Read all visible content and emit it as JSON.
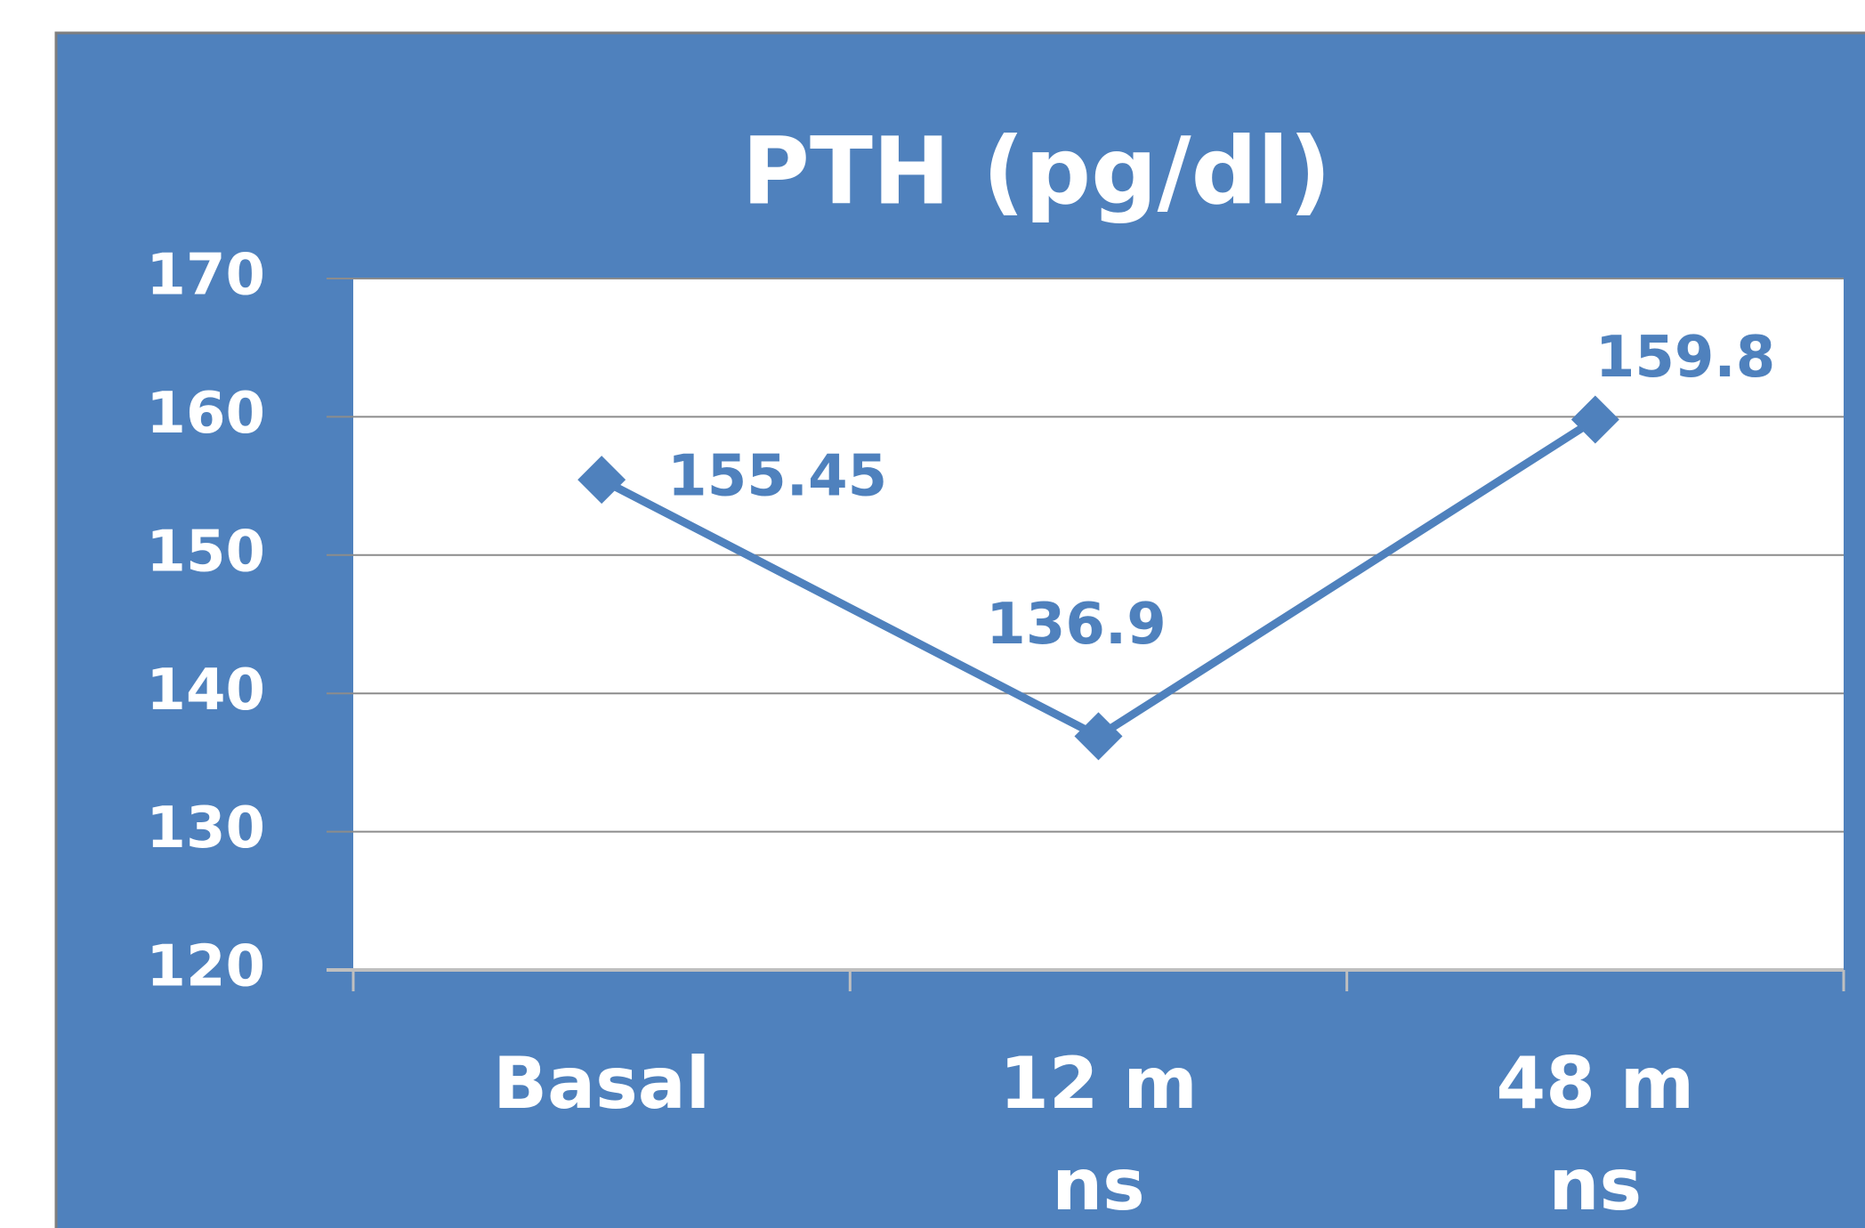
{
  "chart_data": {
    "type": "line",
    "title": "PTH (pg/dl)",
    "categories": [
      "Basal",
      "12 m",
      "48 m"
    ],
    "category_notes": [
      null,
      "ns",
      "ns"
    ],
    "series": [
      {
        "color": "#4f81bd",
        "values": [
          155.45,
          136.9,
          159.8
        ]
      }
    ],
    "ylim": [
      120,
      170
    ],
    "yticks": [
      120,
      130,
      140,
      150,
      160,
      170
    ],
    "grid": true
  }
}
